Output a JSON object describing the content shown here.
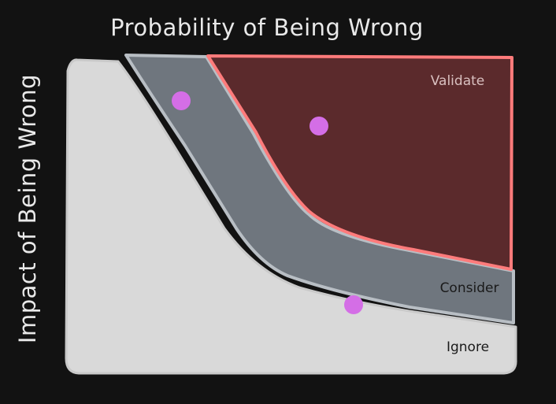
{
  "axes": {
    "x_title": "Probability of Being Wrong",
    "y_title": "Impact of Being Wrong"
  },
  "zones": [
    {
      "key": "ignore",
      "label": "Ignore"
    },
    {
      "key": "consider",
      "label": "Consider"
    },
    {
      "key": "validate",
      "label": "Validate"
    }
  ],
  "colors": {
    "background": "#121212",
    "ignore_fill": "#d9d9d9",
    "consider_fill": "#6f767e",
    "consider_stroke": "#b8bec4",
    "validate_fill": "#5b2a2c",
    "validate_stroke": "#ff7b7b",
    "point": "#d46ee6",
    "title": "#e9e9e9",
    "label_dark": "#1a1a1a",
    "label_light": "#d9c0c0"
  },
  "markers": [
    {
      "zone": "consider"
    },
    {
      "zone": "validate"
    },
    {
      "zone": "ignore"
    }
  ]
}
